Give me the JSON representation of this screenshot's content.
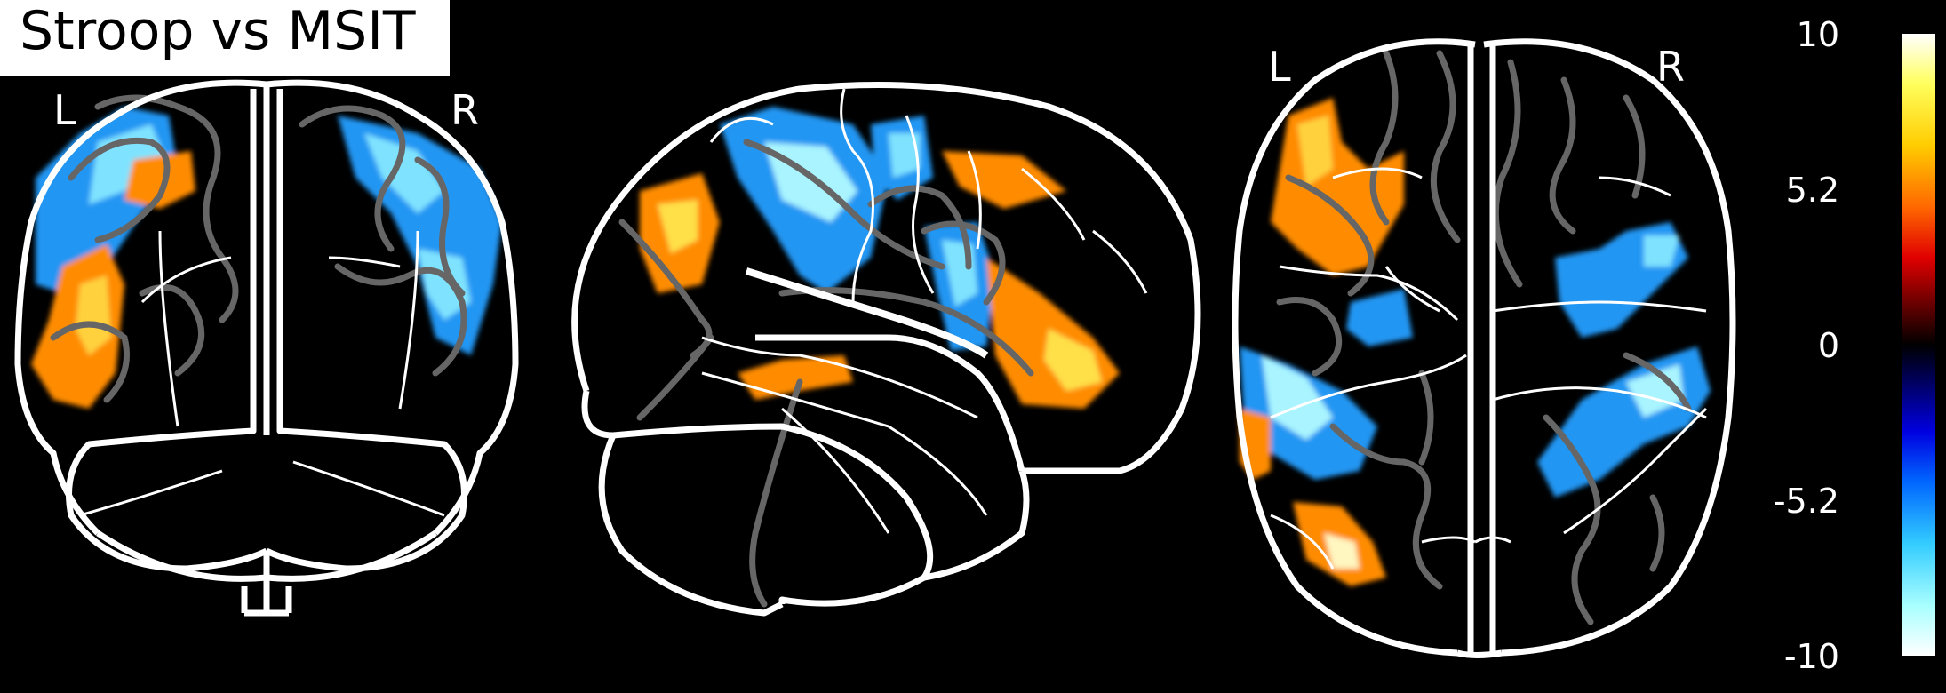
{
  "figure": {
    "title": "Stroop vs MSIT",
    "views": [
      {
        "name": "coronal",
        "left_label": "L",
        "right_label": "R"
      },
      {
        "name": "sagittal"
      },
      {
        "name": "axial",
        "left_label": "L",
        "right_label": "R"
      }
    ]
  },
  "colorbar": {
    "ticks": [
      "10",
      "5.2",
      "0",
      "-5.2",
      "-10"
    ],
    "range": [
      -10,
      10
    ],
    "colors": {
      "max": "#ffffff",
      "pos_high": "#ffff5e",
      "pos_mid": "#ff6600",
      "pos_low": "#e00000",
      "zero": "#000000",
      "neg_low": "#0000e0",
      "neg_mid": "#0066ff",
      "neg_high": "#33ccff",
      "min": "#ffffff"
    }
  },
  "colors": {
    "background": "#000000",
    "outline": "#ffffff",
    "sulci": "#666666",
    "positive": "#ff8c00",
    "negative": "#1e90ff"
  }
}
